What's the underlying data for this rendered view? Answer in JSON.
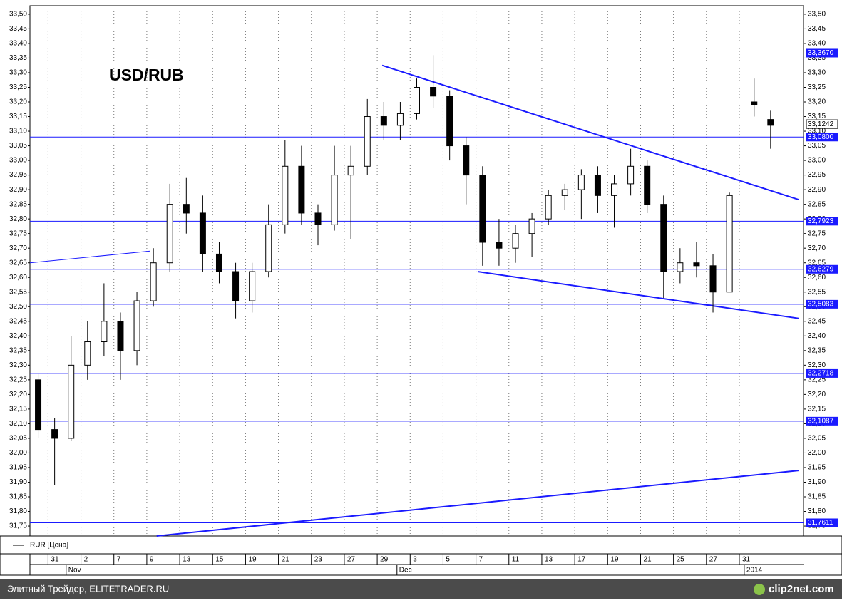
{
  "chart_data": {
    "type": "candlestick",
    "title": "USD/RUB",
    "series": [
      {
        "name": "RUR [Цена]",
        "color": "#000000",
        "x": [
          0.5,
          1.5,
          2.5,
          3.5,
          4.5,
          5.5,
          6.5,
          7.5,
          8.5,
          9.5,
          10.5,
          11.5,
          12.5,
          13.5,
          14.5,
          15.5,
          16.5,
          17.5,
          18.5,
          19.5,
          20.5,
          21.5,
          22.5,
          23.5,
          24.5,
          25.5,
          26.5,
          27.5,
          28.5,
          29.5,
          30.5,
          31.5,
          32.5,
          33.5,
          34.5,
          35.5,
          36.5,
          37.5,
          38.5,
          39.5,
          40.5,
          41.5,
          42.5,
          44,
          45
        ],
        "open": [
          32.25,
          32.08,
          32.05,
          32.3,
          32.38,
          32.45,
          32.35,
          32.52,
          32.65,
          32.85,
          32.82,
          32.68,
          32.62,
          32.52,
          32.62,
          32.78,
          32.98,
          32.82,
          32.78,
          32.95,
          32.98,
          33.15,
          33.12,
          33.16,
          33.25,
          33.22,
          33.05,
          32.95,
          32.72,
          32.7,
          32.75,
          32.8,
          32.88,
          32.9,
          32.95,
          32.88,
          32.92,
          32.98,
          32.85,
          32.62,
          32.65,
          32.64,
          32.55,
          33.2,
          33.14
        ],
        "high": [
          32.27,
          32.12,
          32.4,
          32.45,
          32.58,
          32.48,
          32.55,
          32.7,
          32.92,
          32.94,
          32.88,
          32.72,
          32.65,
          32.65,
          32.85,
          33.07,
          33.05,
          32.85,
          33.05,
          33.05,
          33.21,
          33.2,
          33.2,
          33.28,
          33.36,
          33.24,
          33.08,
          32.98,
          32.8,
          32.78,
          32.82,
          32.9,
          32.92,
          32.97,
          32.98,
          32.95,
          33.04,
          33.0,
          32.88,
          32.7,
          32.72,
          32.68,
          32.89,
          33.28,
          33.17
        ],
        "low": [
          32.05,
          31.89,
          32.04,
          32.25,
          32.33,
          32.25,
          32.3,
          32.5,
          32.62,
          32.75,
          32.62,
          32.58,
          32.46,
          32.48,
          32.6,
          32.75,
          32.78,
          32.71,
          32.76,
          32.73,
          32.95,
          33.07,
          33.07,
          33.14,
          33.18,
          33.0,
          32.85,
          32.64,
          32.64,
          32.65,
          32.67,
          32.78,
          32.83,
          32.8,
          32.82,
          32.77,
          32.88,
          32.82,
          32.53,
          32.58,
          32.6,
          32.48,
          32.55,
          33.15,
          33.04
        ],
        "close": [
          32.08,
          32.05,
          32.3,
          32.38,
          32.45,
          32.35,
          32.52,
          32.65,
          32.85,
          32.82,
          32.68,
          32.62,
          32.52,
          32.62,
          32.78,
          32.98,
          32.82,
          32.78,
          32.95,
          32.98,
          33.15,
          33.12,
          33.16,
          33.25,
          33.22,
          33.05,
          32.95,
          32.72,
          32.7,
          32.75,
          32.8,
          32.88,
          32.9,
          32.95,
          32.88,
          32.92,
          32.98,
          32.85,
          32.62,
          32.65,
          32.64,
          32.55,
          32.88,
          33.19,
          33.12
        ]
      }
    ],
    "xlim": [
      0,
      47
    ],
    "xticks": [
      {
        "value": 1.1,
        "label": "31"
      },
      {
        "value": 3.1,
        "label": "2"
      },
      {
        "value": 5.1,
        "label": "7"
      },
      {
        "value": 7.1,
        "label": "9"
      },
      {
        "value": 9.1,
        "label": "13"
      },
      {
        "value": 11.1,
        "label": "15"
      },
      {
        "value": 13.1,
        "label": "19"
      },
      {
        "value": 15.1,
        "label": "21"
      },
      {
        "value": 17.1,
        "label": "23"
      },
      {
        "value": 19.1,
        "label": "27"
      },
      {
        "value": 21.1,
        "label": "29"
      },
      {
        "value": 23.1,
        "label": "3"
      },
      {
        "value": 25.1,
        "label": "5"
      },
      {
        "value": 27.1,
        "label": "7"
      },
      {
        "value": 29.1,
        "label": "11"
      },
      {
        "value": 31.1,
        "label": "13"
      },
      {
        "value": 33.1,
        "label": "17"
      },
      {
        "value": 35.1,
        "label": "19"
      },
      {
        "value": 37.1,
        "label": "21"
      },
      {
        "value": 39.1,
        "label": "25"
      },
      {
        "value": 41.1,
        "label": "27"
      },
      {
        "value": 43.1,
        "label": "31"
      }
    ],
    "month_ticks": [
      {
        "value": 2.2,
        "label": "Nov"
      },
      {
        "value": 22.3,
        "label": "Dec"
      },
      {
        "value": 43.4,
        "label": "2014"
      }
    ],
    "ylim": [
      31.716,
      33.529
    ],
    "yticks": [
      {
        "value": 31.75,
        "label": "31,75"
      },
      {
        "value": 31.8,
        "label": "31,80"
      },
      {
        "value": 31.85,
        "label": "31,85"
      },
      {
        "value": 31.9,
        "label": "31,90"
      },
      {
        "value": 31.95,
        "label": "31,95"
      },
      {
        "value": 32.0,
        "label": "32,00"
      },
      {
        "value": 32.05,
        "label": "32,05"
      },
      {
        "value": 32.1,
        "label": "32,10"
      },
      {
        "value": 32.15,
        "label": "32,15"
      },
      {
        "value": 32.2,
        "label": "32,20"
      },
      {
        "value": 32.25,
        "label": "32,25"
      },
      {
        "value": 32.3,
        "label": "32,30"
      },
      {
        "value": 32.35,
        "label": "32,35"
      },
      {
        "value": 32.4,
        "label": "32,40"
      },
      {
        "value": 32.45,
        "label": "32,45"
      },
      {
        "value": 32.5,
        "label": "32,50"
      },
      {
        "value": 32.55,
        "label": "32,55"
      },
      {
        "value": 32.6,
        "label": "32,60"
      },
      {
        "value": 32.65,
        "label": "32,65"
      },
      {
        "value": 32.7,
        "label": "32,70"
      },
      {
        "value": 32.75,
        "label": "32,75"
      },
      {
        "value": 32.8,
        "label": "32,80"
      },
      {
        "value": 32.85,
        "label": "32,85"
      },
      {
        "value": 32.9,
        "label": "32,90"
      },
      {
        "value": 32.95,
        "label": "32,95"
      },
      {
        "value": 33.0,
        "label": "33,00"
      },
      {
        "value": 33.05,
        "label": "33,05"
      },
      {
        "value": 33.1,
        "label": "33,10"
      },
      {
        "value": 33.15,
        "label": "33,15"
      },
      {
        "value": 33.2,
        "label": "33,20"
      },
      {
        "value": 33.25,
        "label": "33,25"
      },
      {
        "value": 33.3,
        "label": "33,30"
      },
      {
        "value": 33.35,
        "label": "33,35"
      },
      {
        "value": 33.4,
        "label": "33,40"
      },
      {
        "value": 33.45,
        "label": "33,45"
      },
      {
        "value": 33.5,
        "label": "33,50"
      }
    ],
    "levels": [
      {
        "value": 33.367,
        "label": "33,3670"
      },
      {
        "value": 33.08,
        "label": "33,0800"
      },
      {
        "value": 32.7923,
        "label": "32,7923"
      },
      {
        "value": 32.6279,
        "label": "32,6279"
      },
      {
        "value": 32.5083,
        "label": "32,5083"
      },
      {
        "value": 32.2718,
        "label": "32,2718"
      },
      {
        "value": 32.1087,
        "label": "32,1087"
      },
      {
        "value": 31.7611,
        "label": "31,7611"
      }
    ],
    "last_price": {
      "value": 33.1242,
      "label": "33,1242"
    },
    "trend_lines": [
      {
        "x": [
          0,
          7.3
        ],
        "y": [
          32.65,
          32.69
        ],
        "width": 1
      },
      {
        "x": [
          21.4,
          46.7
        ],
        "y": [
          33.325,
          32.866
        ],
        "width": 2
      },
      {
        "x": [
          27.2,
          46.7
        ],
        "y": [
          32.62,
          32.46
        ],
        "width": 2
      },
      {
        "x": [
          7.7,
          46.7
        ],
        "y": [
          31.716,
          31.94
        ],
        "width": 2
      }
    ],
    "level_color": "#1a1aff",
    "grid": true
  },
  "footer": {
    "source": "Элитный Трейдер, ELITETRADER.RU",
    "brand": "clip2net.com"
  }
}
